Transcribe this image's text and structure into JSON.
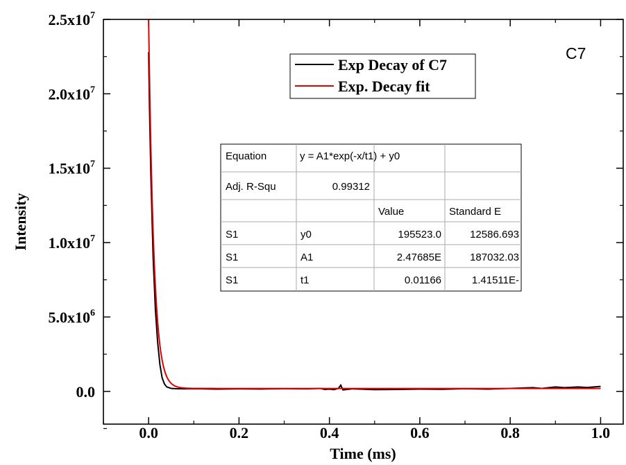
{
  "chart_data": {
    "type": "line",
    "xlabel": "Time (ms)",
    "ylabel": "Intensity",
    "xlim": [
      -0.1,
      1.05
    ],
    "ylim": [
      -2200000,
      25000000
    ],
    "x_ticks": [
      0.0,
      0.2,
      0.4,
      0.6,
      0.8,
      1.0
    ],
    "x_tick_labels": [
      "0.0",
      "0.2",
      "0.4",
      "0.6",
      "0.8",
      "1.0"
    ],
    "y_ticks": [
      0,
      5000000,
      10000000,
      15000000,
      20000000,
      25000000
    ],
    "y_tick_labels": [
      {
        "mantissa": "0.0",
        "exp": ""
      },
      {
        "mantissa": "5.0x10",
        "exp": "6"
      },
      {
        "mantissa": "1.0x10",
        "exp": "7"
      },
      {
        "mantissa": "1.5x10",
        "exp": "7"
      },
      {
        "mantissa": "2.0x10",
        "exp": "7"
      },
      {
        "mantissa": "2.5x10",
        "exp": "7"
      }
    ],
    "panel_label": "C7",
    "legend_position": "top-center",
    "series": [
      {
        "name": "Exp Decay of C7",
        "color": "#000000",
        "x": [
          0.0,
          0.002,
          0.005,
          0.01,
          0.015,
          0.02,
          0.025,
          0.03,
          0.035,
          0.04,
          0.05,
          0.06,
          0.08,
          0.1,
          0.15,
          0.2,
          0.25,
          0.3,
          0.35,
          0.38,
          0.39,
          0.4,
          0.41,
          0.42,
          0.425,
          0.43,
          0.45,
          0.5,
          0.55,
          0.6,
          0.65,
          0.7,
          0.75,
          0.8,
          0.85,
          0.87,
          0.9,
          0.92,
          0.95,
          0.97,
          1.0
        ],
        "y": [
          22800000,
          19000000,
          14500000,
          9000000,
          5500000,
          3300000,
          1800000,
          900000,
          500000,
          300000,
          200000,
          180000,
          170000,
          180000,
          150000,
          170000,
          160000,
          180000,
          170000,
          200000,
          130000,
          150000,
          120000,
          200000,
          420000,
          100000,
          170000,
          120000,
          130000,
          150000,
          140000,
          180000,
          150000,
          200000,
          250000,
          200000,
          300000,
          250000,
          300000,
          260000,
          330000
        ]
      },
      {
        "name": "Exp. Decay fit",
        "color": "#e00000",
        "fit": {
          "y0": 195523.0,
          "A1": 24768500,
          "t1": 0.01166
        },
        "x_range": [
          0.0,
          1.0
        ]
      }
    ],
    "table": {
      "rows": [
        [
          "Equation",
          "y = A1*exp(-x/t1) + y0",
          ""
        ],
        [
          "Adj. R-Squ",
          "0.99312",
          ""
        ],
        [
          "",
          "",
          "Value",
          "Standard E"
        ],
        [
          "S1",
          "y0",
          "195523.0",
          "12586.693"
        ],
        [
          "S1",
          "A1",
          "2.47685E",
          "187032.03"
        ],
        [
          "S1",
          "t1",
          "0.01166",
          "1.41511E-"
        ]
      ]
    }
  }
}
